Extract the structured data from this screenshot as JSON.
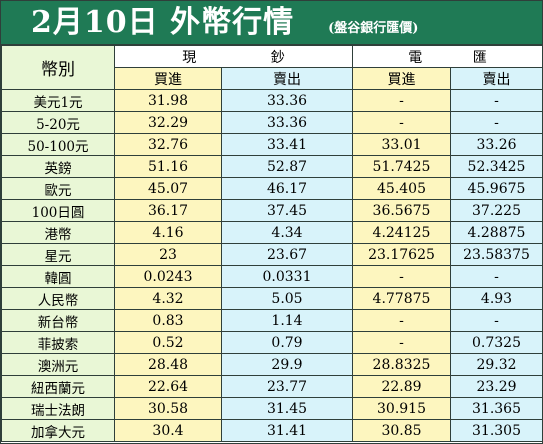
{
  "header": {
    "title": "2月10日 外幣行情",
    "source": "(盤谷銀行匯價)"
  },
  "columns": {
    "currency": "幣別",
    "cash_group": [
      "現",
      "鈔"
    ],
    "telegraphic_group": [
      "電",
      "匯"
    ],
    "buy": "買進",
    "sell": "賣出"
  },
  "rows": [
    {
      "currency": "美元1元",
      "cash_buy": "31.98",
      "cash_sell": "33.36",
      "tt_buy": "-",
      "tt_sell": "-"
    },
    {
      "currency": "5-20元",
      "cash_buy": "32.29",
      "cash_sell": "33.36",
      "tt_buy": "-",
      "tt_sell": "-"
    },
    {
      "currency": "50-100元",
      "cash_buy": "32.76",
      "cash_sell": "33.41",
      "tt_buy": "33.01",
      "tt_sell": "33.26"
    },
    {
      "currency": "英鎊",
      "cash_buy": "51.16",
      "cash_sell": "52.87",
      "tt_buy": "51.7425",
      "tt_sell": "52.3425"
    },
    {
      "currency": "歐元",
      "cash_buy": "45.07",
      "cash_sell": "46.17",
      "tt_buy": "45.405",
      "tt_sell": "45.9675"
    },
    {
      "currency": "100日圓",
      "cash_buy": "36.17",
      "cash_sell": "37.45",
      "tt_buy": "36.5675",
      "tt_sell": "37.225"
    },
    {
      "currency": "港幣",
      "cash_buy": "4.16",
      "cash_sell": "4.34",
      "tt_buy": "4.24125",
      "tt_sell": "4.28875"
    },
    {
      "currency": "星元",
      "cash_buy": "23",
      "cash_sell": "23.67",
      "tt_buy": "23.17625",
      "tt_sell": "23.58375"
    },
    {
      "currency": "韓圓",
      "cash_buy": "0.0243",
      "cash_sell": "0.0331",
      "tt_buy": "-",
      "tt_sell": "-"
    },
    {
      "currency": "人民幣",
      "cash_buy": "4.32",
      "cash_sell": "5.05",
      "tt_buy": "4.77875",
      "tt_sell": "4.93"
    },
    {
      "currency": "新台幣",
      "cash_buy": "0.83",
      "cash_sell": "1.14",
      "tt_buy": "-",
      "tt_sell": "-"
    },
    {
      "currency": "菲披索",
      "cash_buy": "0.52",
      "cash_sell": "0.79",
      "tt_buy": "-",
      "tt_sell": "0.7325"
    },
    {
      "currency": "澳洲元",
      "cash_buy": "28.48",
      "cash_sell": "29.9",
      "tt_buy": "28.8325",
      "tt_sell": "29.32"
    },
    {
      "currency": "紐西蘭元",
      "cash_buy": "22.64",
      "cash_sell": "23.77",
      "tt_buy": "22.89",
      "tt_sell": "23.29"
    },
    {
      "currency": "瑞士法朗",
      "cash_buy": "30.58",
      "cash_sell": "31.45",
      "tt_buy": "30.915",
      "tt_sell": "31.365"
    },
    {
      "currency": "加拿大元",
      "cash_buy": "30.4",
      "cash_sell": "31.41",
      "tt_buy": "30.85",
      "tt_sell": "31.305"
    }
  ],
  "colors": {
    "title_bg": "#1f7a55",
    "label_bg": "#e9f7d6",
    "buy_bg": "#fdf6bf",
    "sell_bg": "#d8f3fa",
    "border": "#2f3f3a"
  }
}
